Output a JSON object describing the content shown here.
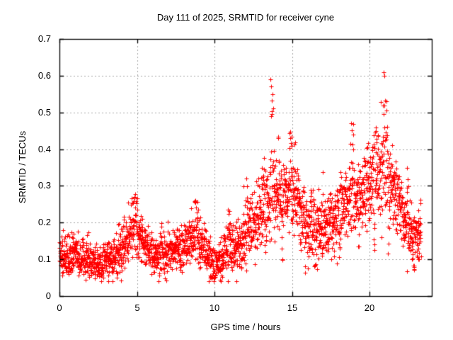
{
  "window": {
    "title": "Day 111 of 2025, SRMTID for receiver cyne"
  },
  "chart_data": {
    "type": "scatter",
    "title": "Day 111 of 2025, SRMTID for receiver cyne",
    "xlabel": "GPS time / hours",
    "ylabel": "SRMTID / TECUs",
    "xlim": [
      0,
      24
    ],
    "ylim": [
      0,
      0.7
    ],
    "xticks": [
      0,
      5,
      10,
      15,
      20
    ],
    "xtick_labels": [
      "0",
      "5",
      "10",
      "15",
      "20"
    ],
    "yticks": [
      0,
      0.1,
      0.2,
      0.3,
      0.4,
      0.5,
      0.6,
      0.7
    ],
    "ytick_labels": [
      "0",
      "0.1",
      "0.2",
      "0.3",
      "0.4",
      "0.5",
      "0.6",
      "0.7"
    ],
    "grid": true,
    "grid_color": "#a6a6a6",
    "border_color": "#000000",
    "legend": "none",
    "marker": "plus",
    "marker_color": "#ff0000",
    "marker_size_px": 7,
    "series": [
      {
        "name": "SRMTID",
        "x_start": 0.0,
        "x_end": 23.3,
        "sample_step_hours": 0.0085,
        "seed": 111,
        "y_min_clamp": 0.04,
        "y_max_clamp": 0.68,
        "envelope_points": [
          [
            0.0,
            0.105,
            0.035
          ],
          [
            0.5,
            0.11,
            0.04
          ],
          [
            1.0,
            0.115,
            0.04
          ],
          [
            1.5,
            0.105,
            0.038
          ],
          [
            2.0,
            0.1,
            0.035
          ],
          [
            2.5,
            0.095,
            0.035
          ],
          [
            3.0,
            0.1,
            0.035
          ],
          [
            3.5,
            0.11,
            0.04
          ],
          [
            4.0,
            0.14,
            0.05
          ],
          [
            4.5,
            0.17,
            0.055
          ],
          [
            4.9,
            0.18,
            0.055
          ],
          [
            5.3,
            0.15,
            0.05
          ],
          [
            5.7,
            0.12,
            0.04
          ],
          [
            6.2,
            0.11,
            0.038
          ],
          [
            6.7,
            0.115,
            0.04
          ],
          [
            7.2,
            0.125,
            0.04
          ],
          [
            7.7,
            0.13,
            0.042
          ],
          [
            8.2,
            0.14,
            0.048
          ],
          [
            8.7,
            0.17,
            0.05
          ],
          [
            9.1,
            0.155,
            0.05
          ],
          [
            9.5,
            0.12,
            0.045
          ],
          [
            10.0,
            0.085,
            0.038
          ],
          [
            10.4,
            0.1,
            0.04
          ],
          [
            10.9,
            0.14,
            0.05
          ],
          [
            11.3,
            0.12,
            0.048
          ],
          [
            11.7,
            0.15,
            0.055
          ],
          [
            12.1,
            0.185,
            0.065
          ],
          [
            12.5,
            0.21,
            0.065
          ],
          [
            13.0,
            0.225,
            0.07
          ],
          [
            13.5,
            0.255,
            0.075
          ],
          [
            13.8,
            0.285,
            0.085
          ],
          [
            14.2,
            0.255,
            0.075
          ],
          [
            14.6,
            0.265,
            0.075
          ],
          [
            15.0,
            0.275,
            0.08
          ],
          [
            15.4,
            0.24,
            0.075
          ],
          [
            15.8,
            0.21,
            0.075
          ],
          [
            16.3,
            0.19,
            0.07
          ],
          [
            16.7,
            0.18,
            0.065
          ],
          [
            17.2,
            0.195,
            0.065
          ],
          [
            17.7,
            0.21,
            0.065
          ],
          [
            18.2,
            0.23,
            0.068
          ],
          [
            18.7,
            0.27,
            0.072
          ],
          [
            19.1,
            0.275,
            0.072
          ],
          [
            19.5,
            0.265,
            0.07
          ],
          [
            20.0,
            0.3,
            0.075
          ],
          [
            20.4,
            0.33,
            0.08
          ],
          [
            20.9,
            0.355,
            0.095
          ],
          [
            21.3,
            0.3,
            0.085
          ],
          [
            21.7,
            0.27,
            0.075
          ],
          [
            22.1,
            0.22,
            0.065
          ],
          [
            22.5,
            0.19,
            0.058
          ],
          [
            22.9,
            0.17,
            0.052
          ],
          [
            23.3,
            0.19,
            0.05
          ]
        ],
        "up_spikes": [
          [
            4.8,
            0.27,
            0.2
          ],
          [
            8.8,
            0.26,
            0.15
          ],
          [
            10.9,
            0.25,
            0.1
          ],
          [
            12.1,
            0.33,
            0.08
          ],
          [
            13.1,
            0.35,
            0.1
          ],
          [
            13.7,
            0.59,
            0.09
          ],
          [
            14.15,
            0.44,
            0.07
          ],
          [
            14.9,
            0.46,
            0.09
          ],
          [
            15.15,
            0.42,
            0.07
          ],
          [
            16.2,
            0.32,
            0.07
          ],
          [
            18.85,
            0.47,
            0.12
          ],
          [
            19.85,
            0.41,
            0.07
          ],
          [
            20.35,
            0.46,
            0.1
          ],
          [
            20.9,
            0.62,
            0.08
          ],
          [
            21.1,
            0.53,
            0.06
          ],
          [
            22.45,
            0.35,
            0.08
          ]
        ],
        "down_spikes": [
          [
            2.6,
            0.055,
            0.2
          ],
          [
            3.8,
            0.048,
            0.1
          ],
          [
            7.9,
            0.065,
            0.1
          ],
          [
            9.0,
            0.075,
            0.08
          ],
          [
            9.9,
            0.048,
            0.18
          ],
          [
            12.0,
            0.07,
            0.08
          ],
          [
            12.6,
            0.085,
            0.06
          ],
          [
            14.4,
            0.08,
            0.06
          ],
          [
            15.8,
            0.075,
            0.08
          ],
          [
            16.45,
            0.08,
            0.08
          ],
          [
            17.5,
            0.1,
            0.06
          ],
          [
            18.05,
            0.105,
            0.05
          ],
          [
            19.3,
            0.13,
            0.05
          ],
          [
            20.3,
            0.12,
            0.04
          ],
          [
            22.8,
            0.07,
            0.12
          ],
          [
            23.1,
            0.1,
            0.08
          ]
        ]
      }
    ]
  }
}
